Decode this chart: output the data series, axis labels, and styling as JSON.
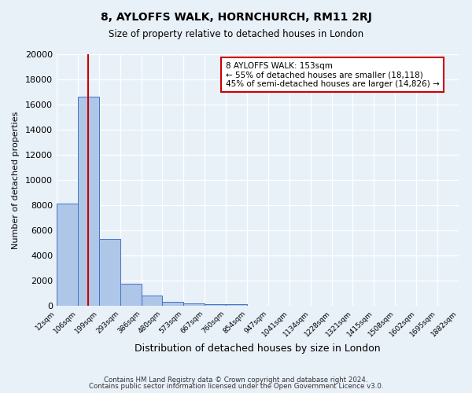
{
  "title": "8, AYLOFFS WALK, HORNCHURCH, RM11 2RJ",
  "subtitle": "Size of property relative to detached houses in London",
  "bar_heights": [
    8100,
    16600,
    5300,
    1750,
    800,
    300,
    200,
    150,
    100,
    0,
    0,
    0,
    0,
    0,
    0,
    0,
    0,
    0,
    0
  ],
  "bin_edge_labels": [
    "12sqm",
    "106sqm",
    "199sqm",
    "293sqm",
    "386sqm",
    "480sqm",
    "573sqm",
    "667sqm",
    "760sqm",
    "854sqm",
    "947sqm",
    "1041sqm",
    "1134sqm",
    "1228sqm",
    "1321sqm",
    "1415sqm",
    "1508sqm",
    "1602sqm",
    "1695sqm",
    "1882sqm"
  ],
  "bar_color": "#aec6e8",
  "bar_edge_color": "#4472c4",
  "vline_color": "#cc0000",
  "xlabel": "Distribution of detached houses by size in London",
  "ylabel": "Number of detached properties",
  "ylim": [
    0,
    20000
  ],
  "yticks": [
    0,
    2000,
    4000,
    6000,
    8000,
    10000,
    12000,
    14000,
    16000,
    18000,
    20000
  ],
  "annotation_title": "8 AYLOFFS WALK: 153sqm",
  "annotation_line1": "← 55% of detached houses are smaller (18,118)",
  "annotation_line2": "45% of semi-detached houses are larger (14,826) →",
  "annotation_box_color": "#ffffff",
  "annotation_box_edge": "#cc0000",
  "footer1": "Contains HM Land Registry data © Crown copyright and database right 2024.",
  "footer2": "Contains public sector information licensed under the Open Government Licence v3.0.",
  "background_color": "#e8f0f8",
  "plot_background": "#e8f0f8",
  "grid_color": "#ffffff"
}
